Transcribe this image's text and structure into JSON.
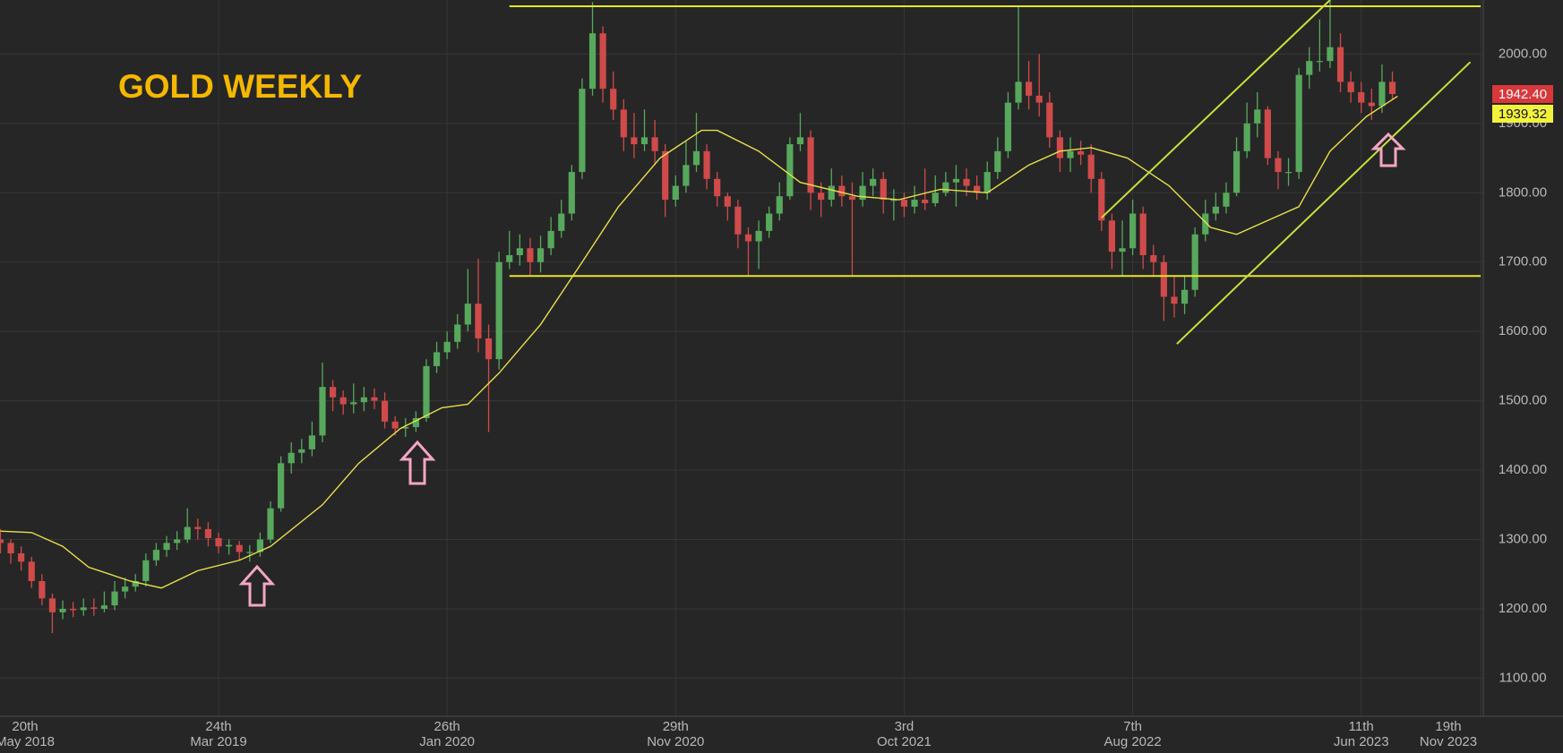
{
  "chart_data": {
    "type": "candlestick",
    "title": "GOLD WEEKLY",
    "xlim": [
      1.92,
      287.5
    ],
    "ylim": [
      1045,
      2078
    ],
    "xticks": [
      {
        "value": 0,
        "label": "20th",
        "label2": "May 2018"
      },
      {
        "value": 44,
        "label": "24th",
        "label2": "Mar 2019"
      },
      {
        "value": 88,
        "label": "26th",
        "label2": "Jan 2020"
      },
      {
        "value": 132,
        "label": "29th",
        "label2": "Nov 2020"
      },
      {
        "value": 176,
        "label": "3rd",
        "label2": "Oct 2021"
      },
      {
        "value": 220,
        "label": "7th",
        "label2": "Aug 2022"
      },
      {
        "value": 264,
        "label": "11th",
        "label2": "Jun 2023"
      },
      {
        "value": 287,
        "label": "19th",
        "label2": "Nov 2023"
      }
    ],
    "yticks": [
      {
        "value": 1100,
        "label": "1100.00"
      },
      {
        "value": 1200,
        "label": "1200.00"
      },
      {
        "value": 1300,
        "label": "1300.00"
      },
      {
        "value": 1400,
        "label": "1400.00"
      },
      {
        "value": 1500,
        "label": "1500.00"
      },
      {
        "value": 1600,
        "label": "1600.00"
      },
      {
        "value": 1700,
        "label": "1700.00"
      },
      {
        "value": 1800,
        "label": "1800.00"
      },
      {
        "value": 1900,
        "label": "1900.00"
      },
      {
        "value": 2000,
        "label": "2000.00"
      }
    ],
    "grid": true,
    "up_color": "#57a85c",
    "down_color": "#d04a4a",
    "x": [
      2,
      4,
      6,
      8,
      10,
      12,
      14,
      16,
      18,
      20,
      22,
      24,
      26,
      28,
      30,
      32,
      34,
      36,
      38,
      40,
      42,
      44,
      46,
      48,
      50,
      52,
      54,
      56,
      58,
      60,
      62,
      64,
      66,
      68,
      70,
      72,
      74,
      76,
      78,
      80,
      82,
      84,
      86,
      88,
      90,
      92,
      94,
      96,
      98,
      100,
      102,
      104,
      106,
      108,
      110,
      112,
      114,
      116,
      118,
      120,
      122,
      124,
      126,
      128,
      130,
      132,
      134,
      136,
      138,
      140,
      142,
      144,
      146,
      148,
      150,
      152,
      154,
      156,
      158,
      160,
      162,
      164,
      166,
      168,
      170,
      172,
      174,
      176,
      178,
      180,
      182,
      184,
      186,
      188,
      190,
      192,
      194,
      196,
      198,
      200,
      202,
      204,
      206,
      208,
      210,
      212,
      214,
      216,
      218,
      220,
      222,
      224,
      226,
      228,
      230,
      232,
      234,
      236,
      238,
      240,
      242,
      244,
      246,
      248,
      250,
      252,
      254,
      256,
      258,
      260,
      262,
      264,
      266,
      268,
      270
    ],
    "open": [
      1300,
      1295,
      1280,
      1268,
      1240,
      1215,
      1195,
      1200,
      1198,
      1202,
      1200,
      1205,
      1225,
      1232,
      1240,
      1270,
      1285,
      1295,
      1300,
      1318,
      1315,
      1302,
      1290,
      1292,
      1282,
      1282,
      1300,
      1345,
      1410,
      1425,
      1430,
      1450,
      1520,
      1505,
      1495,
      1498,
      1505,
      1500,
      1470,
      1460,
      1462,
      1475,
      1550,
      1570,
      1585,
      1610,
      1640,
      1590,
      1560,
      1700,
      1710,
      1720,
      1700,
      1720,
      1745,
      1770,
      1830,
      1950,
      2030,
      1950,
      1920,
      1880,
      1870,
      1880,
      1860,
      1790,
      1810,
      1840,
      1860,
      1820,
      1795,
      1780,
      1740,
      1730,
      1745,
      1770,
      1795,
      1870,
      1880,
      1800,
      1790,
      1810,
      1795,
      1790,
      1810,
      1820,
      1790,
      1790,
      1780,
      1790,
      1785,
      1800,
      1815,
      1820,
      1810,
      1800,
      1830,
      1860,
      1930,
      1960,
      1940,
      1930,
      1880,
      1850,
      1860,
      1855,
      1820,
      1760,
      1715,
      1720,
      1770,
      1710,
      1700,
      1650,
      1640,
      1660,
      1740,
      1770,
      1780,
      1800,
      1860,
      1900,
      1920,
      1850,
      1830,
      1830,
      1970,
      1990,
      1990,
      2010,
      1960,
      1945,
      1930,
      1925,
      1960
    ],
    "high": [
      1315,
      1300,
      1290,
      1275,
      1250,
      1222,
      1212,
      1210,
      1215,
      1215,
      1225,
      1240,
      1245,
      1250,
      1280,
      1295,
      1305,
      1312,
      1345,
      1330,
      1325,
      1310,
      1300,
      1298,
      1292,
      1310,
      1355,
      1420,
      1440,
      1445,
      1470,
      1555,
      1530,
      1515,
      1525,
      1520,
      1518,
      1512,
      1478,
      1475,
      1485,
      1560,
      1585,
      1600,
      1625,
      1690,
      1705,
      1610,
      1715,
      1745,
      1740,
      1735,
      1738,
      1765,
      1790,
      1840,
      1965,
      2075,
      2040,
      1975,
      1935,
      1915,
      1920,
      1905,
      1870,
      1825,
      1875,
      1915,
      1870,
      1830,
      1800,
      1790,
      1750,
      1760,
      1780,
      1815,
      1880,
      1915,
      1890,
      1815,
      1835,
      1825,
      1815,
      1830,
      1835,
      1830,
      1805,
      1800,
      1810,
      1835,
      1825,
      1830,
      1840,
      1835,
      1825,
      1845,
      1880,
      1945,
      2070,
      1990,
      2000,
      1945,
      1890,
      1880,
      1875,
      1870,
      1830,
      1770,
      1760,
      1790,
      1780,
      1725,
      1710,
      1680,
      1680,
      1750,
      1790,
      1800,
      1815,
      1880,
      1930,
      1945,
      1925,
      1860,
      1850,
      1980,
      2010,
      2050,
      2080,
      2030,
      1975,
      1960,
      1950,
      1985,
      1975
    ],
    "low": [
      1280,
      1265,
      1255,
      1230,
      1205,
      1165,
      1185,
      1188,
      1190,
      1190,
      1195,
      1198,
      1215,
      1225,
      1232,
      1262,
      1275,
      1285,
      1295,
      1300,
      1290,
      1280,
      1278,
      1270,
      1268,
      1275,
      1295,
      1340,
      1395,
      1410,
      1420,
      1440,
      1485,
      1480,
      1482,
      1485,
      1488,
      1460,
      1450,
      1448,
      1455,
      1470,
      1540,
      1560,
      1575,
      1600,
      1570,
      1455,
      1545,
      1690,
      1695,
      1680,
      1685,
      1710,
      1735,
      1760,
      1820,
      1940,
      1930,
      1905,
      1860,
      1850,
      1860,
      1840,
      1765,
      1780,
      1800,
      1830,
      1805,
      1780,
      1760,
      1720,
      1680,
      1690,
      1735,
      1760,
      1790,
      1860,
      1775,
      1765,
      1780,
      1780,
      1680,
      1780,
      1795,
      1770,
      1760,
      1765,
      1770,
      1775,
      1780,
      1795,
      1780,
      1795,
      1790,
      1790,
      1820,
      1850,
      1920,
      1920,
      1910,
      1865,
      1830,
      1830,
      1840,
      1800,
      1745,
      1690,
      1680,
      1710,
      1690,
      1680,
      1615,
      1620,
      1625,
      1650,
      1730,
      1760,
      1770,
      1795,
      1850,
      1880,
      1840,
      1805,
      1810,
      1820,
      1950,
      1975,
      1980,
      1945,
      1930,
      1915,
      1905,
      1915,
      1935
    ],
    "close": [
      1295,
      1280,
      1268,
      1240,
      1215,
      1195,
      1200,
      1198,
      1202,
      1200,
      1205,
      1225,
      1232,
      1240,
      1270,
      1285,
      1295,
      1300,
      1318,
      1315,
      1302,
      1290,
      1292,
      1282,
      1282,
      1300,
      1345,
      1410,
      1425,
      1430,
      1450,
      1520,
      1505,
      1495,
      1498,
      1505,
      1500,
      1470,
      1460,
      1462,
      1475,
      1550,
      1570,
      1585,
      1610,
      1640,
      1590,
      1560,
      1700,
      1710,
      1720,
      1700,
      1720,
      1745,
      1770,
      1830,
      1950,
      2030,
      1950,
      1920,
      1880,
      1870,
      1880,
      1860,
      1790,
      1810,
      1840,
      1860,
      1820,
      1795,
      1780,
      1740,
      1730,
      1745,
      1770,
      1795,
      1870,
      1880,
      1800,
      1790,
      1810,
      1795,
      1790,
      1810,
      1820,
      1790,
      1790,
      1780,
      1790,
      1785,
      1800,
      1815,
      1820,
      1810,
      1800,
      1830,
      1860,
      1930,
      1960,
      1940,
      1930,
      1880,
      1850,
      1860,
      1855,
      1820,
      1760,
      1715,
      1720,
      1770,
      1710,
      1700,
      1650,
      1640,
      1660,
      1740,
      1770,
      1780,
      1800,
      1860,
      1900,
      1920,
      1850,
      1830,
      1830,
      1970,
      1990,
      1990,
      2010,
      1960,
      1945,
      1930,
      1925,
      1960,
      1942.4
    ],
    "moving_average": {
      "color": "#e8e04a",
      "x": [
        2,
        8,
        14,
        19,
        27,
        33,
        40,
        48,
        54,
        64,
        71,
        79,
        87,
        92,
        98,
        106,
        114,
        121,
        129,
        137,
        140,
        148,
        156,
        167,
        175,
        183,
        192,
        200,
        206,
        212,
        219,
        227,
        235,
        240,
        246,
        252,
        258,
        265,
        271
      ],
      "values": [
        1312,
        1310,
        1290,
        1260,
        1240,
        1230,
        1255,
        1270,
        1290,
        1350,
        1410,
        1460,
        1490,
        1495,
        1540,
        1610,
        1700,
        1780,
        1850,
        1890,
        1890,
        1860,
        1815,
        1795,
        1790,
        1805,
        1800,
        1840,
        1860,
        1865,
        1850,
        1810,
        1750,
        1740,
        1760,
        1780,
        1860,
        1910,
        1939.32
      ]
    },
    "trendlines": [
      {
        "color": "#e6e62a",
        "x": [
          100,
          287
        ],
        "values": [
          2069,
          2069
        ]
      },
      {
        "color": "#e6e62a",
        "x": [
          100,
          287
        ],
        "values": [
          1680,
          1680
        ]
      },
      {
        "color": "#c8e03c",
        "x": [
          214,
          258
        ],
        "values": [
          1764,
          2078
        ]
      },
      {
        "color": "#c8e03c",
        "x": [
          228.5,
          285
        ],
        "values": [
          1582,
          1988.5
        ]
      }
    ],
    "last_price": {
      "value": 1942.4,
      "label": "1942.40",
      "color": "#d9373b"
    },
    "ma_last": {
      "value": 1939.32,
      "label": "1939.32",
      "color": "#f2f23a"
    }
  }
}
